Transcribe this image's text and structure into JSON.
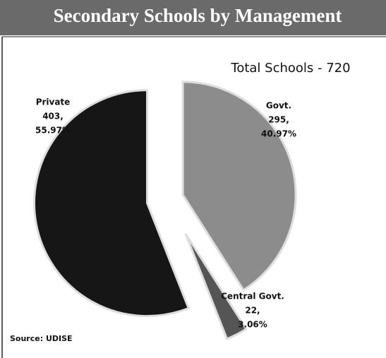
{
  "chart_data": {
    "type": "pie",
    "title": "Secondary Schools by Management",
    "subtitle": "Total Schools - 720",
    "source": "Source: UDISE",
    "categories": [
      "Govt.",
      "Central Govt.",
      "Private"
    ],
    "values": [
      295,
      22,
      403
    ],
    "value_labels": [
      "295,",
      "22,",
      "403,"
    ],
    "percentages": [
      {
        "value": 40.97,
        "label": "40.97%"
      },
      {
        "value": 3.06,
        "label": "3.06%"
      },
      {
        "value": 55.97,
        "label": "55.97%"
      }
    ],
    "colors": [
      "#8c8c8c",
      "#555555",
      "#161616"
    ]
  }
}
